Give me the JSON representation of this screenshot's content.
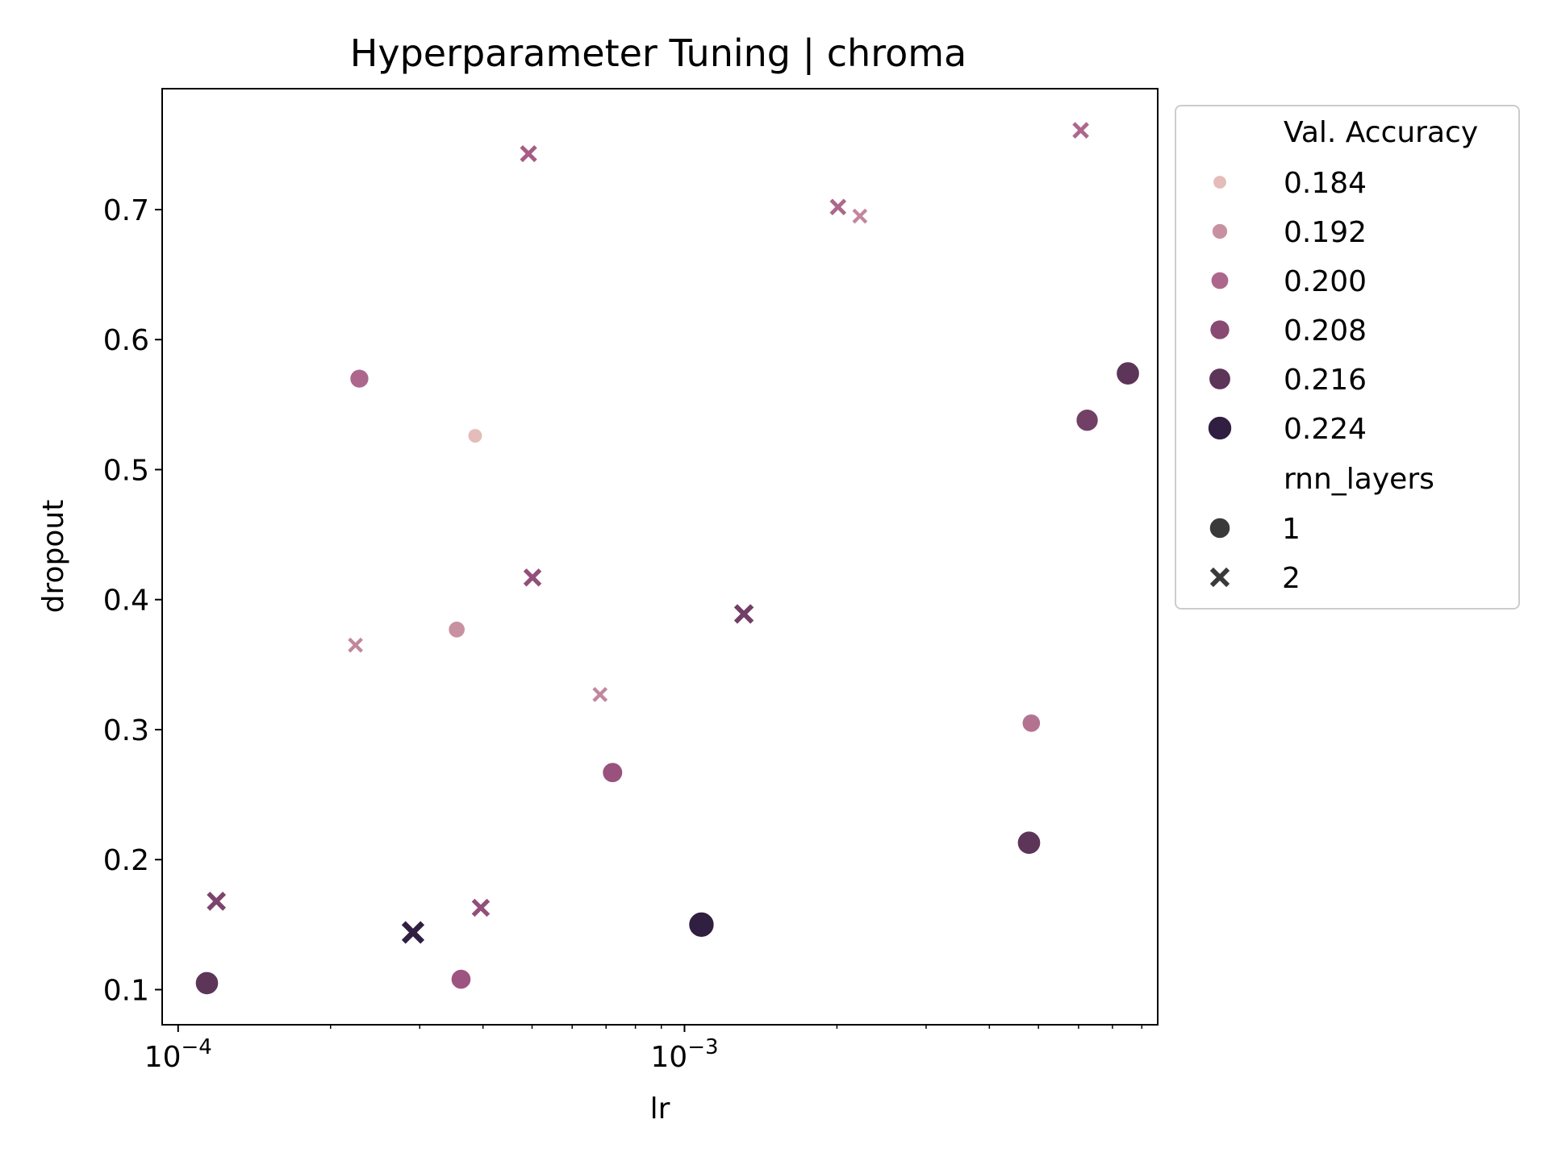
{
  "chart_data": {
    "type": "scatter",
    "title": "Hyperparameter Tuning | chroma",
    "xlabel": "lr",
    "ylabel": "dropout",
    "x_scale": "log",
    "xlim": [
      9.3e-05,
      0.0086
    ],
    "ylim": [
      0.073,
      0.793
    ],
    "x_ticks": [
      {
        "value": 0.0001,
        "base": "10",
        "exp": "−4"
      },
      {
        "value": 0.001,
        "base": "10",
        "exp": "−3"
      }
    ],
    "y_ticks": [
      {
        "value": 0.1,
        "label": "0.1"
      },
      {
        "value": 0.2,
        "label": "0.2"
      },
      {
        "value": 0.3,
        "label": "0.3"
      },
      {
        "value": 0.4,
        "label": "0.4"
      },
      {
        "value": 0.5,
        "label": "0.5"
      },
      {
        "value": 0.6,
        "label": "0.6"
      },
      {
        "value": 0.7,
        "label": "0.7"
      }
    ],
    "grid": false,
    "legend_position": "outside-right",
    "hue_variable": "Val. Accuracy",
    "style_variable": "rnn_layers",
    "legend": {
      "hue_title": "Val. Accuracy",
      "hue_entries": [
        {
          "label": "0.184",
          "value": 0.184
        },
        {
          "label": "0.192",
          "value": 0.192
        },
        {
          "label": "0.200",
          "value": 0.2
        },
        {
          "label": "0.208",
          "value": 0.208
        },
        {
          "label": "0.216",
          "value": 0.216
        },
        {
          "label": "0.224",
          "value": 0.224
        }
      ],
      "style_title": "rnn_layers",
      "style_entries": [
        {
          "label": "1",
          "marker": "circle"
        },
        {
          "label": "2",
          "marker": "x"
        }
      ]
    },
    "hue_range": [
      0.1815,
      0.2245
    ],
    "colors": {
      "low": "#ecc9c0",
      "mid": "#a35783",
      "high": "#2d1e3e",
      "legend_marker": "#3a3a3a",
      "axes": "#000000"
    },
    "points": [
      {
        "lr": 0.000114,
        "dropout": 0.105,
        "val_accuracy": 0.216,
        "rnn_layers": 1
      },
      {
        "lr": 0.000119,
        "dropout": 0.168,
        "val_accuracy": 0.21,
        "rnn_layers": 2
      },
      {
        "lr": 0.000224,
        "dropout": 0.365,
        "val_accuracy": 0.194,
        "rnn_layers": 2
      },
      {
        "lr": 0.000228,
        "dropout": 0.57,
        "val_accuracy": 0.2,
        "rnn_layers": 1
      },
      {
        "lr": 0.000291,
        "dropout": 0.144,
        "val_accuracy": 0.224,
        "rnn_layers": 2
      },
      {
        "lr": 0.000355,
        "dropout": 0.377,
        "val_accuracy": 0.192,
        "rnn_layers": 1
      },
      {
        "lr": 0.000362,
        "dropout": 0.108,
        "val_accuracy": 0.204,
        "rnn_layers": 1
      },
      {
        "lr": 0.000386,
        "dropout": 0.526,
        "val_accuracy": 0.184,
        "rnn_layers": 1
      },
      {
        "lr": 0.000396,
        "dropout": 0.163,
        "val_accuracy": 0.206,
        "rnn_layers": 2
      },
      {
        "lr": 0.000492,
        "dropout": 0.743,
        "val_accuracy": 0.202,
        "rnn_layers": 2
      },
      {
        "lr": 0.000501,
        "dropout": 0.417,
        "val_accuracy": 0.206,
        "rnn_layers": 2
      },
      {
        "lr": 0.000681,
        "dropout": 0.327,
        "val_accuracy": 0.194,
        "rnn_layers": 2
      },
      {
        "lr": 0.000721,
        "dropout": 0.267,
        "val_accuracy": 0.205,
        "rnn_layers": 1
      },
      {
        "lr": 0.00108,
        "dropout": 0.15,
        "val_accuracy": 0.224,
        "rnn_layers": 1
      },
      {
        "lr": 0.00131,
        "dropout": 0.389,
        "val_accuracy": 0.212,
        "rnn_layers": 2
      },
      {
        "lr": 0.00201,
        "dropout": 0.702,
        "val_accuracy": 0.2,
        "rnn_layers": 2
      },
      {
        "lr": 0.00222,
        "dropout": 0.695,
        "val_accuracy": 0.194,
        "rnn_layers": 2
      },
      {
        "lr": 0.00479,
        "dropout": 0.213,
        "val_accuracy": 0.216,
        "rnn_layers": 1
      },
      {
        "lr": 0.00484,
        "dropout": 0.305,
        "val_accuracy": 0.198,
        "rnn_layers": 1
      },
      {
        "lr": 0.00606,
        "dropout": 0.761,
        "val_accuracy": 0.2,
        "rnn_layers": 2
      },
      {
        "lr": 0.00624,
        "dropout": 0.538,
        "val_accuracy": 0.212,
        "rnn_layers": 1
      },
      {
        "lr": 0.00751,
        "dropout": 0.574,
        "val_accuracy": 0.216,
        "rnn_layers": 1
      }
    ]
  }
}
